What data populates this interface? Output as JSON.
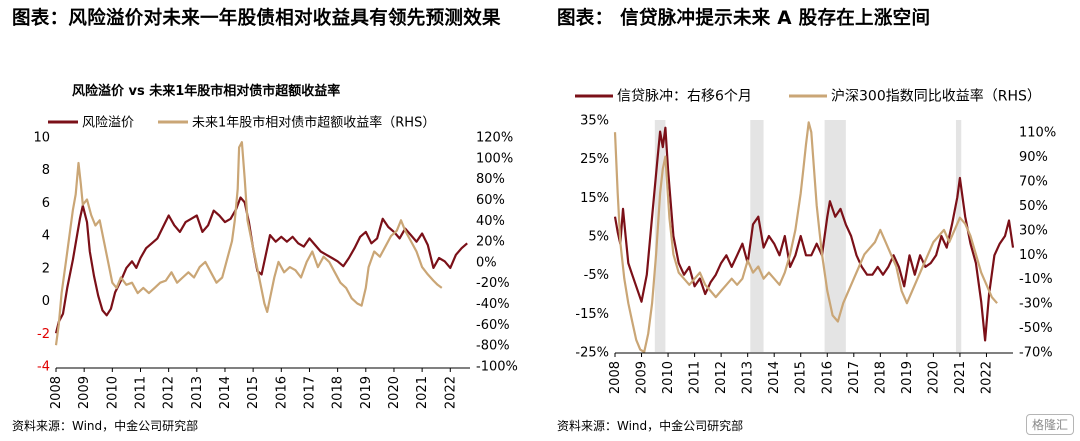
{
  "colors": {
    "series_dark": "#7b1018",
    "series_tan": "#caa676",
    "shade": "#e4e4e4",
    "negative": "#e00000"
  },
  "watermark": "格隆汇",
  "left": {
    "fig_title": "图表：风险溢价对未来一年股债相对收益具有领先预测效果",
    "source": "资料来源：Wind，中金公司研究部"
  },
  "right": {
    "fig_title": "图表：   信贷脉冲提示未来 A 股存在上涨空间",
    "source": "资料来源：Wind，中金公司研究部"
  },
  "chart_data": [
    {
      "type": "line",
      "title": "风险溢价 vs 未来1年股市相对债市超额收益率",
      "legend_placement": "top",
      "x_ticks": [
        "2008",
        "2009",
        "2010",
        "2011",
        "2012",
        "2013",
        "2014",
        "2015",
        "2016",
        "2017",
        "2018",
        "2019",
        "2020",
        "2021",
        "2022"
      ],
      "xlim": [
        2008.0,
        2022.7
      ],
      "y_left": {
        "ticks": [
          10,
          8,
          6,
          4,
          2,
          0,
          -2,
          -4
        ],
        "ylim": [
          -4,
          10
        ]
      },
      "y_right": {
        "ticks": [
          "120%",
          "100%",
          "80%",
          "60%",
          "40%",
          "20%",
          "0%",
          "-20%",
          "-40%",
          "-60%",
          "-80%",
          "-100%"
        ],
        "ylim": [
          -100,
          120
        ],
        "label": "RHS"
      },
      "series": [
        {
          "name": "风险溢价",
          "axis": "left",
          "x": [
            2008.0,
            2008.1,
            2008.25,
            2008.4,
            2008.6,
            2008.75,
            2008.85,
            2008.95,
            2009.1,
            2009.2,
            2009.35,
            2009.5,
            2009.65,
            2009.8,
            2009.95,
            2010.1,
            2010.3,
            2010.5,
            2010.7,
            2010.85,
            2011.0,
            2011.2,
            2011.4,
            2011.6,
            2011.8,
            2012.0,
            2012.2,
            2012.4,
            2012.6,
            2012.8,
            2013.0,
            2013.2,
            2013.4,
            2013.6,
            2013.8,
            2014.0,
            2014.2,
            2014.4,
            2014.55,
            2014.7,
            2014.85,
            2015.0,
            2015.15,
            2015.3,
            2015.45,
            2015.6,
            2015.8,
            2016.0,
            2016.2,
            2016.4,
            2016.6,
            2016.8,
            2017.0,
            2017.2,
            2017.4,
            2017.6,
            2017.8,
            2018.0,
            2018.2,
            2018.4,
            2018.6,
            2018.8,
            2019.0,
            2019.2,
            2019.4,
            2019.6,
            2019.8,
            2020.0,
            2020.2,
            2020.4,
            2020.6,
            2020.8,
            2021.0,
            2021.2,
            2021.4,
            2021.6,
            2021.8,
            2022.0,
            2022.2,
            2022.4,
            2022.6
          ],
          "values": [
            -2.0,
            -1.3,
            -0.8,
            0.8,
            2.5,
            4.0,
            5.0,
            5.8,
            4.8,
            3.0,
            1.5,
            0.3,
            -0.6,
            -0.9,
            -0.5,
            0.5,
            1.2,
            2.0,
            2.4,
            2.0,
            2.6,
            3.2,
            3.5,
            3.8,
            4.5,
            5.2,
            4.6,
            4.2,
            4.8,
            5.0,
            5.2,
            4.2,
            4.6,
            5.5,
            5.2,
            4.8,
            5.0,
            5.6,
            6.3,
            6.0,
            4.8,
            3.2,
            1.8,
            1.6,
            2.8,
            4.0,
            3.6,
            3.9,
            3.6,
            3.9,
            3.5,
            3.3,
            3.8,
            3.4,
            3.0,
            2.8,
            2.6,
            2.4,
            2.1,
            2.6,
            3.2,
            3.9,
            4.2,
            3.5,
            3.8,
            5.0,
            4.5,
            4.2,
            3.8,
            4.4,
            4.0,
            3.6,
            4.1,
            3.4,
            2.0,
            2.6,
            2.4,
            2.0,
            2.8,
            3.2,
            3.5
          ]
        },
        {
          "name": "未来1年股市相对债市超额收益率（RHS）",
          "axis": "right",
          "x": [
            2008.0,
            2008.1,
            2008.2,
            2008.35,
            2008.5,
            2008.6,
            2008.7,
            2008.8,
            2008.88,
            2008.95,
            2009.1,
            2009.25,
            2009.4,
            2009.55,
            2009.7,
            2009.85,
            2010.0,
            2010.15,
            2010.3,
            2010.5,
            2010.7,
            2010.9,
            2011.1,
            2011.3,
            2011.5,
            2011.7,
            2011.9,
            2012.1,
            2012.3,
            2012.5,
            2012.7,
            2012.9,
            2013.1,
            2013.3,
            2013.5,
            2013.7,
            2013.9,
            2014.1,
            2014.25,
            2014.35,
            2014.45,
            2014.5,
            2014.6,
            2014.7,
            2014.8,
            2014.95,
            2015.1,
            2015.25,
            2015.4,
            2015.5,
            2015.6,
            2015.75,
            2015.9,
            2016.1,
            2016.3,
            2016.5,
            2016.7,
            2016.9,
            2017.1,
            2017.3,
            2017.5,
            2017.7,
            2017.9,
            2018.1,
            2018.3,
            2018.5,
            2018.7,
            2018.85,
            2019.0,
            2019.1,
            2019.3,
            2019.5,
            2019.7,
            2019.9,
            2020.1,
            2020.25,
            2020.4,
            2020.6,
            2020.8,
            2021.0,
            2021.2,
            2021.4,
            2021.55,
            2021.7
          ],
          "values": [
            -80,
            -60,
            -30,
            0,
            30,
            50,
            65,
            95,
            75,
            55,
            60,
            45,
            35,
            40,
            20,
            0,
            -20,
            -25,
            -15,
            -22,
            -20,
            -30,
            -25,
            -30,
            -25,
            -20,
            -18,
            -10,
            -20,
            -15,
            -10,
            -15,
            -5,
            0,
            -10,
            -20,
            -15,
            5,
            20,
            40,
            70,
            110,
            115,
            80,
            40,
            20,
            0,
            -20,
            -40,
            -48,
            -35,
            -15,
            0,
            -10,
            -5,
            -8,
            -15,
            0,
            10,
            -5,
            5,
            0,
            -10,
            -20,
            -25,
            -35,
            -40,
            -42,
            -25,
            -5,
            10,
            5,
            15,
            25,
            30,
            40,
            30,
            20,
            10,
            -5,
            -12,
            -18,
            -22,
            -25
          ]
        }
      ]
    },
    {
      "type": "line",
      "title": "",
      "legend_placement": "top",
      "x_ticks": [
        "2008",
        "2009",
        "2010",
        "2011",
        "2012",
        "2013",
        "2014",
        "2015",
        "2016",
        "2017",
        "2018",
        "2019",
        "2020",
        "2021",
        "2022"
      ],
      "xlim": [
        2008.0,
        2023.0
      ],
      "y_left": {
        "ticks": [
          "35%",
          "25%",
          "15%",
          "5%",
          "-5%",
          "-15%",
          "-25%"
        ],
        "ylim": [
          -25,
          35
        ]
      },
      "y_right": {
        "ticks": [
          "110%",
          "90%",
          "70%",
          "50%",
          "30%",
          "10%",
          "-10%",
          "-30%",
          "-50%",
          "-70%"
        ],
        "ylim": [
          -70,
          120
        ],
        "label": "RHS"
      },
      "shaded_periods": [
        [
          2009.5,
          2009.9
        ],
        [
          2013.1,
          2013.6
        ],
        [
          2015.9,
          2016.7
        ],
        [
          2020.85,
          2021.05
        ]
      ],
      "series": [
        {
          "name": "信贷脉冲：右移6个月",
          "axis": "left",
          "x": [
            2008.0,
            2008.1,
            2008.2,
            2008.3,
            2008.4,
            2008.5,
            2008.65,
            2008.8,
            2009.0,
            2009.2,
            2009.4,
            2009.6,
            2009.7,
            2009.8,
            2009.9,
            2010.0,
            2010.2,
            2010.4,
            2010.6,
            2010.8,
            2011.0,
            2011.2,
            2011.4,
            2011.6,
            2011.8,
            2012.0,
            2012.2,
            2012.4,
            2012.6,
            2012.8,
            2013.0,
            2013.2,
            2013.4,
            2013.6,
            2013.8,
            2014.0,
            2014.2,
            2014.4,
            2014.6,
            2014.8,
            2015.0,
            2015.2,
            2015.4,
            2015.6,
            2015.8,
            2016.0,
            2016.1,
            2016.3,
            2016.5,
            2016.7,
            2016.9,
            2017.1,
            2017.3,
            2017.5,
            2017.7,
            2017.9,
            2018.1,
            2018.3,
            2018.5,
            2018.7,
            2018.9,
            2019.1,
            2019.3,
            2019.5,
            2019.7,
            2019.9,
            2020.1,
            2020.3,
            2020.5,
            2020.7,
            2020.9,
            2021.0,
            2021.2,
            2021.4,
            2021.6,
            2021.8,
            2021.95,
            2022.1,
            2022.3,
            2022.5,
            2022.7,
            2022.85,
            2023.0
          ],
          "values": [
            10,
            6,
            3,
            12,
            5,
            -2,
            -5,
            -8,
            -12,
            -5,
            10,
            25,
            32,
            28,
            33,
            22,
            5,
            -2,
            -5,
            -3,
            -8,
            -6,
            -10,
            -7,
            -5,
            -2,
            0,
            -3,
            0,
            3,
            -2,
            8,
            10,
            2,
            5,
            3,
            0,
            5,
            -3,
            0,
            5,
            0,
            0,
            3,
            0,
            10,
            14,
            10,
            12,
            8,
            5,
            0,
            -3,
            -5,
            -5,
            -3,
            -5,
            -3,
            0,
            -3,
            -8,
            0,
            -5,
            0,
            -3,
            -2,
            0,
            5,
            2,
            8,
            15,
            20,
            10,
            3,
            -2,
            -12,
            -22,
            -10,
            0,
            3,
            5,
            9,
            2
          ]
        },
        {
          "name": "沪深300指数同比收益率（RHS）",
          "axis": "right",
          "x": [
            2008.0,
            2008.1,
            2008.2,
            2008.35,
            2008.5,
            2008.65,
            2008.8,
            2008.95,
            2009.1,
            2009.25,
            2009.4,
            2009.55,
            2009.7,
            2009.8,
            2009.9,
            2010.05,
            2010.2,
            2010.4,
            2010.6,
            2010.8,
            2011.0,
            2011.2,
            2011.4,
            2011.6,
            2011.8,
            2012.0,
            2012.2,
            2012.4,
            2012.6,
            2012.8,
            2013.0,
            2013.2,
            2013.4,
            2013.6,
            2013.8,
            2014.0,
            2014.2,
            2014.4,
            2014.6,
            2014.8,
            2015.0,
            2015.1,
            2015.2,
            2015.3,
            2015.4,
            2015.5,
            2015.6,
            2015.7,
            2015.8,
            2016.0,
            2016.2,
            2016.4,
            2016.6,
            2016.8,
            2017.0,
            2017.2,
            2017.4,
            2017.6,
            2017.8,
            2018.0,
            2018.2,
            2018.4,
            2018.6,
            2018.8,
            2019.0,
            2019.2,
            2019.4,
            2019.6,
            2019.8,
            2020.0,
            2020.2,
            2020.4,
            2020.6,
            2020.8,
            2021.0,
            2021.2,
            2021.4,
            2021.6,
            2021.8,
            2022.0,
            2022.2,
            2022.4
          ],
          "values": [
            110,
            60,
            20,
            -10,
            -30,
            -45,
            -60,
            -68,
            -70,
            -55,
            -30,
            10,
            60,
            80,
            90,
            40,
            10,
            -5,
            -10,
            -15,
            -10,
            -5,
            -15,
            -20,
            -25,
            -20,
            -15,
            -10,
            -15,
            -10,
            5,
            -5,
            0,
            -10,
            -5,
            -10,
            -15,
            -5,
            10,
            30,
            60,
            80,
            100,
            118,
            110,
            80,
            50,
            30,
            10,
            -20,
            -40,
            -45,
            -30,
            -20,
            -10,
            0,
            10,
            15,
            20,
            30,
            20,
            10,
            0,
            -20,
            -30,
            -20,
            -10,
            0,
            10,
            20,
            25,
            30,
            20,
            30,
            40,
            35,
            25,
            10,
            -5,
            -15,
            -25,
            -30
          ]
        }
      ]
    }
  ]
}
